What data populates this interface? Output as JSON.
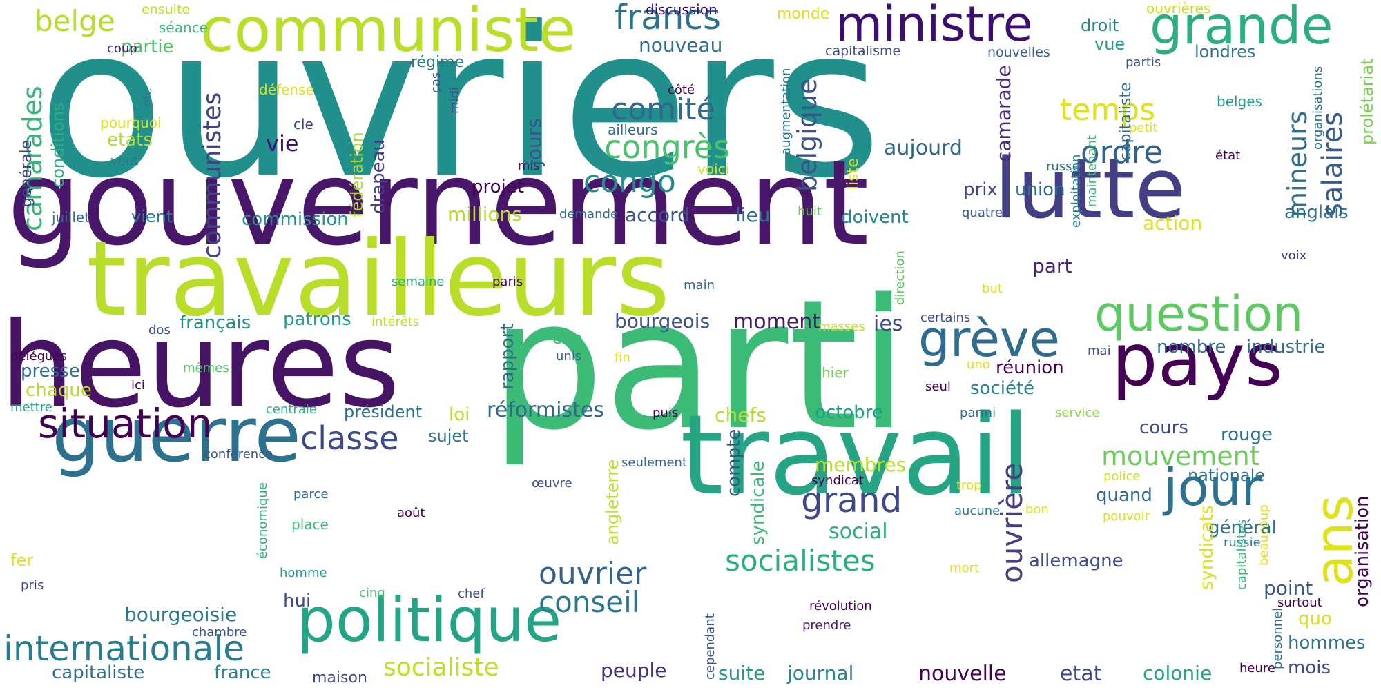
{
  "words": [
    {
      "text": "ouvriers",
      "color": "#21908c"
    },
    {
      "text": "gouvernement",
      "color": "#481769"
    },
    {
      "text": "parti",
      "color": "#3bbb75"
    },
    {
      "text": "heures",
      "color": "#471365"
    },
    {
      "text": "travailleurs",
      "color": "#b8de29"
    },
    {
      "text": "travail",
      "color": "#25a584"
    },
    {
      "text": "lutte",
      "color": "#423f85"
    },
    {
      "text": "pays",
      "color": "#440154"
    },
    {
      "text": "guerre",
      "color": "#2c728e"
    },
    {
      "text": "communiste",
      "color": "#b8de29"
    },
    {
      "text": "politique",
      "color": "#21a585"
    },
    {
      "text": "ministre",
      "color": "#3b0f70"
    },
    {
      "text": "grande",
      "color": "#2ab07f"
    },
    {
      "text": "situation",
      "color": "#440154"
    },
    {
      "text": "internationale",
      "color": "#287d8e"
    },
    {
      "text": "question",
      "color": "#5ec962"
    },
    {
      "text": "grève",
      "color": "#2f6c8e"
    },
    {
      "text": "ans",
      "color": "#dde318"
    },
    {
      "text": "jour",
      "color": "#2d718e"
    },
    {
      "text": "classe",
      "color": "#3e4a89"
    },
    {
      "text": "francs",
      "color": "#2c728e"
    },
    {
      "text": "comité",
      "color": "#31688e"
    },
    {
      "text": "congrès",
      "color": "#4ac16d"
    },
    {
      "text": "congo",
      "color": "#228c8d"
    },
    {
      "text": "ordre",
      "color": "#33638d"
    },
    {
      "text": "temps",
      "color": "#dde318"
    },
    {
      "text": "camarades",
      "color": "#35b779"
    },
    {
      "text": "communistes",
      "color": "#414487"
    },
    {
      "text": "belgique",
      "color": "#3b528b"
    },
    {
      "text": "salaires",
      "color": "#375b8d"
    },
    {
      "text": "mineurs",
      "color": "#2d708e"
    },
    {
      "text": "belge",
      "color": "#b5de2b"
    },
    {
      "text": "grand",
      "color": "#3e4989"
    },
    {
      "text": "ouvrière",
      "color": "#433e85"
    },
    {
      "text": "ouvrier",
      "color": "#33638d"
    },
    {
      "text": "conseil",
      "color": "#2a768e"
    },
    {
      "text": "socialistes",
      "color": "#29af7f"
    },
    {
      "text": "socialiste",
      "color": "#c2df23"
    },
    {
      "text": "mouvement",
      "color": "#6ccd5a"
    },
    {
      "text": "réformistes",
      "color": "#31688e"
    },
    {
      "text": "bourgeoisie",
      "color": "#2a788e"
    },
    {
      "text": "capitaliste",
      "color": "#2f6b8e"
    },
    {
      "text": "france",
      "color": "#26828e"
    },
    {
      "text": "peuple",
      "color": "#472d7b"
    },
    {
      "text": "nouvelle",
      "color": "#440154"
    },
    {
      "text": "etat",
      "color": "#3f4788"
    },
    {
      "text": "colonie",
      "color": "#22a785"
    },
    {
      "text": "journal",
      "color": "#24868e"
    },
    {
      "text": "suite",
      "color": "#1f9e89"
    },
    {
      "text": "mois",
      "color": "#3e4a89"
    },
    {
      "text": "hommes",
      "color": "#2b758e"
    },
    {
      "text": "quo",
      "color": "#dae319"
    },
    {
      "text": "point",
      "color": "#38598c"
    },
    {
      "text": "nouveau",
      "color": "#2d708e"
    },
    {
      "text": "partie",
      "color": "#52c569"
    },
    {
      "text": "conditions",
      "color": "#2ab07f"
    },
    {
      "text": "générale",
      "color": "#404688"
    },
    {
      "text": "etats",
      "color": "#b5de2b"
    },
    {
      "text": "pourquoi",
      "color": "#dde318"
    },
    {
      "text": "veut",
      "color": "#2a788e"
    },
    {
      "text": "défense",
      "color": "#dde318"
    },
    {
      "text": "efc",
      "color": "#2c728e"
    },
    {
      "text": "cle",
      "color": "#3e4989"
    },
    {
      "text": "séance",
      "color": "#3bbb75"
    },
    {
      "text": "ensuite",
      "color": "#bddf26"
    },
    {
      "text": "coup",
      "color": "#481f70"
    },
    {
      "text": "discussion",
      "color": "#3b0f70"
    },
    {
      "text": "monde",
      "color": "#dde318"
    },
    {
      "text": "régime",
      "color": "#287d8e"
    },
    {
      "text": "capitalisme",
      "color": "#3e4989"
    },
    {
      "text": "nouvelles",
      "color": "#375b8d"
    },
    {
      "text": "partis",
      "color": "#3b528b"
    },
    {
      "text": "londres",
      "color": "#2d718e"
    },
    {
      "text": "droit",
      "color": "#26828e"
    },
    {
      "text": "vue",
      "color": "#1fa188"
    },
    {
      "text": "ouvrières",
      "color": "#c8e020"
    },
    {
      "text": "cas",
      "color": "#3b528b"
    },
    {
      "text": "midi",
      "color": "#3e4a89"
    },
    {
      "text": "côté",
      "color": "#440154"
    },
    {
      "text": "ailleurs",
      "color": "#2f6c8e"
    },
    {
      "text": "voici",
      "color": "#dae319"
    },
    {
      "text": "mis",
      "color": "#481769"
    },
    {
      "text": "augmentation",
      "color": "#2a788e"
    },
    {
      "text": "capitaliste",
      "color": "#2f6b8e"
    },
    {
      "text": "belges",
      "color": "#1f9e89"
    },
    {
      "text": "petit",
      "color": "#dde318"
    },
    {
      "text": "état",
      "color": "#440154"
    },
    {
      "text": "russe",
      "color": "#2c728e"
    },
    {
      "text": "organisations",
      "color": "#2c728e"
    },
    {
      "text": "prolétariat",
      "color": "#7ad151"
    },
    {
      "text": "exploitation",
      "color": "#26828e"
    },
    {
      "text": "maintenant",
      "color": "#3bbb75"
    },
    {
      "text": "fédération",
      "color": "#addc30"
    },
    {
      "text": "drapeau",
      "color": "#433e85"
    },
    {
      "text": "vie",
      "color": "#3b0f70"
    },
    {
      "text": "commission",
      "color": "#21918c"
    },
    {
      "text": "vient",
      "color": "#26828e"
    },
    {
      "text": "juillet",
      "color": "#2f6c8e"
    },
    {
      "text": "millions",
      "color": "#b5de2b"
    },
    {
      "text": "demande",
      "color": "#31688e"
    },
    {
      "text": "accord",
      "color": "#3b528b"
    },
    {
      "text": "lieu",
      "color": "#2c728e"
    },
    {
      "text": "doivent",
      "color": "#238a8d"
    },
    {
      "text": "quatre",
      "color": "#39568c"
    },
    {
      "text": "union",
      "color": "#2d708e"
    },
    {
      "text": "prix",
      "color": "#3f4788"
    },
    {
      "text": "projet",
      "color": "#440154"
    },
    {
      "text": "jours",
      "color": "#39568c"
    },
    {
      "text": "aujourd",
      "color": "#31688e"
    },
    {
      "text": "camarade",
      "color": "#472d7b"
    },
    {
      "text": "liste",
      "color": "#dde318"
    },
    {
      "text": "huit",
      "color": "#6ccd5a"
    },
    {
      "text": "action",
      "color": "#dde318"
    },
    {
      "text": "anglais",
      "color": "#2c728e"
    },
    {
      "text": "semaine",
      "color": "#29af7f"
    },
    {
      "text": "paris",
      "color": "#440154"
    },
    {
      "text": "main",
      "color": "#31688e"
    },
    {
      "text": "direction",
      "color": "#5ec962"
    },
    {
      "text": "voix",
      "color": "#472d7b"
    },
    {
      "text": "but",
      "color": "#dde318"
    },
    {
      "text": "part",
      "color": "#482173"
    },
    {
      "text": "certains",
      "color": "#3e4989"
    },
    {
      "text": "français",
      "color": "#21918c"
    },
    {
      "text": "patrons",
      "color": "#20a386"
    },
    {
      "text": "intérêts",
      "color": "#bddf26"
    },
    {
      "text": "masses",
      "color": "#bddf26"
    },
    {
      "text": "bourgeois",
      "color": "#3b528b"
    },
    {
      "text": "moment",
      "color": "#481a6c"
    },
    {
      "text": "ies",
      "color": "#3e4a89"
    },
    {
      "text": "rapport",
      "color": "#2f6c8e"
    },
    {
      "text": "che",
      "color": "#3bbb75"
    },
    {
      "text": "unis",
      "color": "#31688e"
    },
    {
      "text": "fin",
      "color": "#dde318"
    },
    {
      "text": "dos",
      "color": "#3b528b"
    },
    {
      "text": "délégués",
      "color": "#440154"
    },
    {
      "text": "mêmes",
      "color": "#52c569"
    },
    {
      "text": "ici",
      "color": "#440154"
    },
    {
      "text": "mettre",
      "color": "#21a585"
    },
    {
      "text": "presse",
      "color": "#2c728e"
    },
    {
      "text": "chaque",
      "color": "#b5de2b"
    },
    {
      "text": "hier",
      "color": "#7ad151"
    },
    {
      "text": "mai",
      "color": "#3b528b"
    },
    {
      "text": "nombre",
      "color": "#2f6c8e"
    },
    {
      "text": "industrie",
      "color": "#2f6c8e"
    },
    {
      "text": "réunion",
      "color": "#440154"
    },
    {
      "text": "uno",
      "color": "#dde318"
    },
    {
      "text": "seul",
      "color": "#440154"
    },
    {
      "text": "société",
      "color": "#26828e"
    },
    {
      "text": "parmi",
      "color": "#31688e"
    },
    {
      "text": "loi",
      "color": "#bddf26"
    },
    {
      "text": "président",
      "color": "#2c728e"
    },
    {
      "text": "chefs",
      "color": "#b5de2b"
    },
    {
      "text": "octobre",
      "color": "#1fa188"
    },
    {
      "text": "puis",
      "color": "#440154"
    },
    {
      "text": "service",
      "color": "#8fd744"
    },
    {
      "text": "cours",
      "color": "#3e4a89"
    },
    {
      "text": "rouge",
      "color": "#2d708e"
    },
    {
      "text": "centrale",
      "color": "#29af7f"
    },
    {
      "text": "sujet",
      "color": "#2a788e"
    },
    {
      "text": "conférence",
      "color": "#39568c"
    },
    {
      "text": "seulement",
      "color": "#31688e"
    },
    {
      "text": "syndicat",
      "color": "#440154"
    },
    {
      "text": "membres",
      "color": "#b5de2b"
    },
    {
      "text": "compte",
      "color": "#39568c"
    },
    {
      "text": "syndicale",
      "color": "#3bbb75"
    },
    {
      "text": "angleterre",
      "color": "#bddf26"
    },
    {
      "text": "police",
      "color": "#c8e020"
    },
    {
      "text": "nationale",
      "color": "#2c728e"
    },
    {
      "text": "organisation",
      "color": "#440154"
    },
    {
      "text": "quand",
      "color": "#31688e"
    },
    {
      "text": "général",
      "color": "#2c728e"
    },
    {
      "text": "russie",
      "color": "#2c728e"
    },
    {
      "text": "pouvoir",
      "color": "#dde318"
    },
    {
      "text": "trop",
      "color": "#dde318"
    },
    {
      "text": "aucune",
      "color": "#2a788e"
    },
    {
      "text": "bon",
      "color": "#dde318"
    },
    {
      "text": "social",
      "color": "#2ab07f"
    },
    {
      "text": "œuvre",
      "color": "#3e4a89"
    },
    {
      "text": "parce",
      "color": "#31688e"
    },
    {
      "text": "août",
      "color": "#440154"
    },
    {
      "text": "place",
      "color": "#3bbb75"
    },
    {
      "text": "économique",
      "color": "#2ab07f"
    },
    {
      "text": "fer",
      "color": "#dde318"
    },
    {
      "text": "pris",
      "color": "#3e4989"
    },
    {
      "text": "homme",
      "color": "#1f9e89"
    },
    {
      "text": "cinq",
      "color": "#4ac16d"
    },
    {
      "text": "chef",
      "color": "#3b528b"
    },
    {
      "text": "hui",
      "color": "#3e4a89"
    },
    {
      "text": "mort",
      "color": "#dde318"
    },
    {
      "text": "allemagne",
      "color": "#3e4a89"
    },
    {
      "text": "syndicats",
      "color": "#dde318"
    },
    {
      "text": "capitalistes",
      "color": "#35b779"
    },
    {
      "text": "beaucoup",
      "color": "#dde318"
    },
    {
      "text": "surtout",
      "color": "#440154"
    },
    {
      "text": "personnel",
      "color": "#2c728e"
    },
    {
      "text": "heure",
      "color": "#440154"
    },
    {
      "text": "révolution",
      "color": "#440154"
    },
    {
      "text": "prendre",
      "color": "#481769"
    },
    {
      "text": "cependant",
      "color": "#39568c"
    },
    {
      "text": "chambre",
      "color": "#3b528b"
    },
    {
      "text": "maison",
      "color": "#3e4989"
    }
  ]
}
